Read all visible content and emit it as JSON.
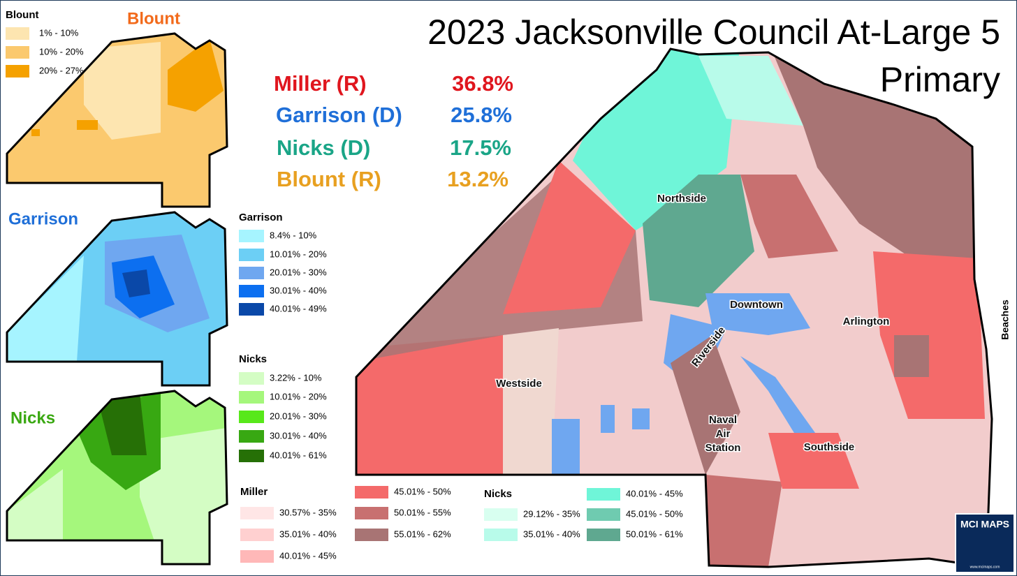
{
  "title": {
    "line1": "2023 Jacksonville Council At-Large 5",
    "line2": "Primary"
  },
  "results": [
    {
      "name": "Miller (R)",
      "pct": "36.8%",
      "color": "#e0161e"
    },
    {
      "name": "Garrison (D)",
      "pct": "25.8%",
      "color": "#1f6fd8"
    },
    {
      "name": "Nicks (D)",
      "pct": "17.5%",
      "color": "#1aa587"
    },
    {
      "name": "Blount (R)",
      "pct": "13.2%",
      "color": "#e8a020"
    }
  ],
  "insets": [
    {
      "label": "Blount",
      "color": "#f26a1b"
    },
    {
      "label": "Garrison",
      "color": "#1f6fd8"
    },
    {
      "label": "Nicks",
      "color": "#3aa812"
    }
  ],
  "legends": [
    {
      "title": "Blount",
      "items": [
        {
          "label": "1% - 10%",
          "color": "#fde5b0"
        },
        {
          "label": "10% - 20%",
          "color": "#fbc96e"
        },
        {
          "label": "20% - 27%",
          "color": "#f5a100"
        }
      ]
    },
    {
      "title": "Garrison",
      "items": [
        {
          "label": "8.4% - 10%",
          "color": "#a6f4ff"
        },
        {
          "label": "10.01% - 20%",
          "color": "#6ccff5"
        },
        {
          "label": "20.01% - 30%",
          "color": "#6fa7f0"
        },
        {
          "label": "30.01% - 40%",
          "color": "#0c6ff0"
        },
        {
          "label": "40.01% - 49%",
          "color": "#0a48a8"
        }
      ]
    },
    {
      "title": "Nicks",
      "items": [
        {
          "label": "3.22% - 10%",
          "color": "#d4fdc4"
        },
        {
          "label": "10.01% - 20%",
          "color": "#a5f77c"
        },
        {
          "label": "20.01% - 30%",
          "color": "#58e81a"
        },
        {
          "label": "30.01% - 40%",
          "color": "#38a812"
        },
        {
          "label": "40.01% - 61%",
          "color": "#267006"
        }
      ]
    },
    {
      "title": "Miller",
      "items": [
        {
          "label": "30.57% - 35%",
          "color": "#ffe6e6"
        },
        {
          "label": "35.01% - 40%",
          "color": "#ffd0d0"
        },
        {
          "label": "40.01% - 45%",
          "color": "#ffb8b8"
        },
        {
          "label": "45.01% - 50%",
          "color": "#f46a6a"
        },
        {
          "label": "50.01% - 55%",
          "color": "#c87070"
        },
        {
          "label": "55.01% - 62%",
          "color": "#a87474"
        }
      ]
    },
    {
      "title": "Nicks",
      "items": [
        {
          "label": "29.12% - 35%",
          "color": "#d8fff0"
        },
        {
          "label": "35.01% - 40%",
          "color": "#b8fbea"
        },
        {
          "label": "40.01% - 45%",
          "color": "#6ff5d8"
        },
        {
          "label": "45.01% - 50%",
          "color": "#6fcbb0"
        },
        {
          "label": "50.01% - 61%",
          "color": "#5fa890"
        }
      ]
    }
  ],
  "places": {
    "northside": "Northside",
    "downtown": "Downtown",
    "arlington": "Arlington",
    "riverside": "Riverside",
    "westside": "Westside",
    "naval": [
      "Naval",
      "Air",
      "Station"
    ],
    "southside": "Southside",
    "beaches": "Beaches"
  },
  "logo": {
    "name": "MCI MAPS",
    "url": "www.mcimaps.com"
  }
}
